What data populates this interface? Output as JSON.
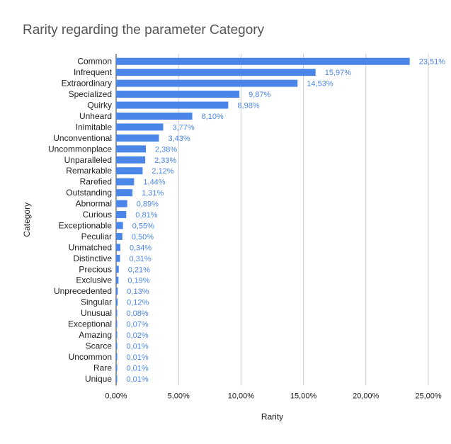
{
  "chart_data": {
    "type": "bar",
    "orientation": "horizontal",
    "title": "Rarity regarding the parameter Category",
    "xlabel": "Rarity",
    "ylabel": "Category",
    "xlim": [
      0,
      25
    ],
    "x_ticks": [
      0,
      5,
      10,
      15,
      20,
      25
    ],
    "x_tick_labels": [
      "0,00%",
      "5,00%",
      "10,00%",
      "15,00%",
      "20,00%",
      "25,00%"
    ],
    "grid": true,
    "bar_color": "#4a86e8",
    "categories": [
      "Common",
      "Infrequent",
      "Extraordinary",
      "Specialized",
      "Quirky",
      "Unheard",
      "Inimitable",
      "Unconventional",
      "Uncommonplace",
      "Unparalleled",
      "Remarkable",
      "Rarefied",
      "Outstanding",
      "Abnormal",
      "Curious",
      "Exceptionable",
      "Peculiar",
      "Unmatched",
      "Distinctive",
      "Precious",
      "Exclusive",
      "Unprecedented",
      "Singular",
      "Unusual",
      "Exceptional",
      "Amazing",
      "Scarce",
      "Uncommon",
      "Rare",
      "Unique"
    ],
    "values": [
      23.51,
      15.97,
      14.53,
      9.87,
      8.98,
      6.1,
      3.77,
      3.43,
      2.38,
      2.33,
      2.12,
      1.44,
      1.31,
      0.89,
      0.81,
      0.55,
      0.5,
      0.34,
      0.31,
      0.21,
      0.19,
      0.13,
      0.12,
      0.08,
      0.07,
      0.02,
      0.01,
      0.01,
      0.01,
      0.01
    ],
    "value_labels": [
      "23,51%",
      "15,97%",
      "14,53%",
      "9,87%",
      "8,98%",
      "6,10%",
      "3,77%",
      "3,43%",
      "2,38%",
      "2,33%",
      "2,12%",
      "1,44%",
      "1,31%",
      "0,89%",
      "0,81%",
      "0,55%",
      "0,50%",
      "0,34%",
      "0,31%",
      "0,21%",
      "0,19%",
      "0,13%",
      "0,12%",
      "0,08%",
      "0,07%",
      "0,02%",
      "0,01%",
      "0,01%",
      "0,01%",
      "0,01%"
    ]
  }
}
